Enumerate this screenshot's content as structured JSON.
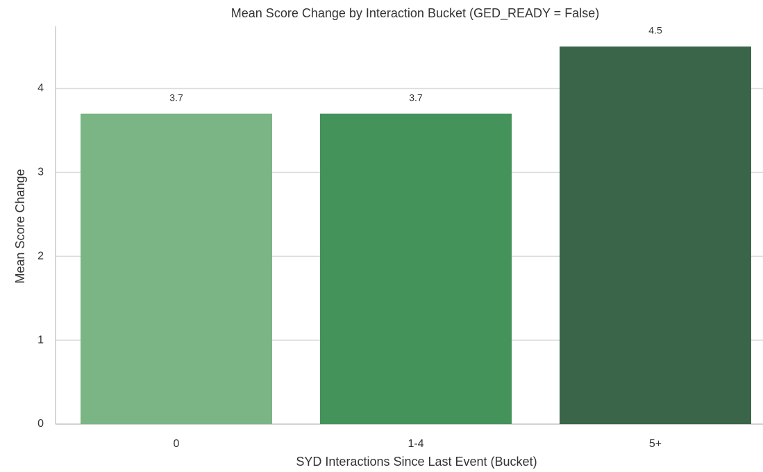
{
  "chart_data": {
    "type": "bar",
    "title": "Mean Score Change by Interaction Bucket (GED_READY = False)",
    "xlabel": "SYD Interactions Since Last Event (Bucket)",
    "ylabel": "Mean Score Change",
    "categories": [
      "0",
      "1-4",
      "5+"
    ],
    "values": [
      3.7,
      3.7,
      4.5
    ],
    "colors": [
      "#7bb585",
      "#44935a",
      "#3a6548"
    ],
    "ylim": [
      0,
      4.74
    ],
    "yticks": [
      0,
      1,
      2,
      3,
      4
    ],
    "grid": true
  }
}
